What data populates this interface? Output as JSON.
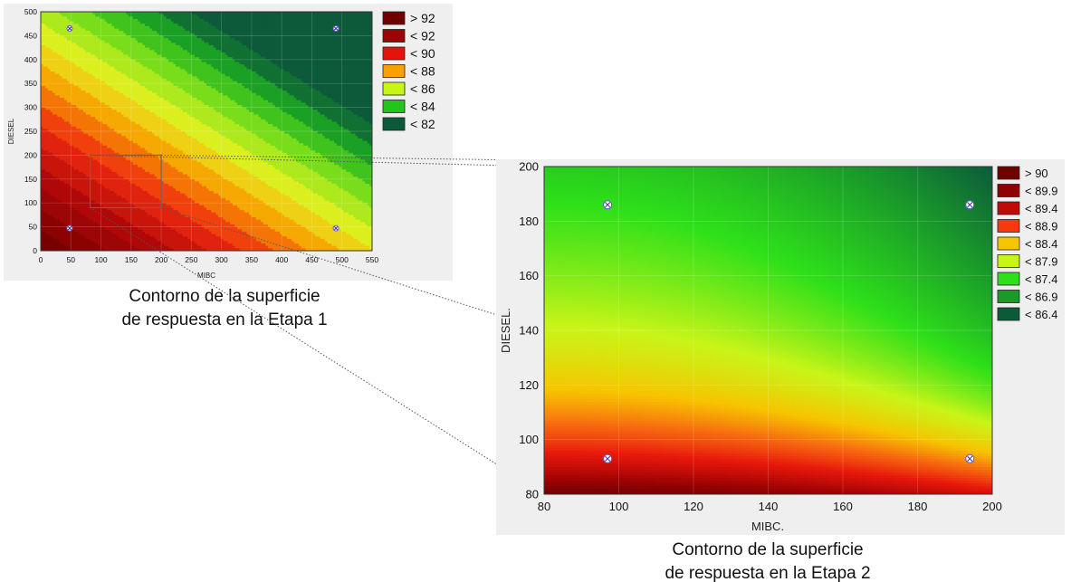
{
  "chart_data": [
    {
      "type": "heatmap",
      "subtype": "contour",
      "xlabel": "MIBC",
      "ylabel": "DIESEL",
      "xlim": [
        0,
        550
      ],
      "ylim": [
        0,
        500
      ],
      "xticks": [
        0,
        50,
        100,
        150,
        200,
        250,
        300,
        350,
        400,
        450,
        500,
        550
      ],
      "yticks": [
        0,
        50,
        100,
        150,
        200,
        250,
        300,
        350,
        400,
        450,
        500
      ],
      "legend_placement": "right",
      "legend": [
        {
          "label": "> 92",
          "color": "#6e0000"
        },
        {
          "label": "< 92",
          "color": "#9b0404"
        },
        {
          "label": "< 90",
          "color": "#e3140c"
        },
        {
          "label": "< 88",
          "color": "#f7a000"
        },
        {
          "label": "< 86",
          "color": "#c8f518"
        },
        {
          "label": "< 84",
          "color": "#22c61a"
        },
        {
          "label": "< 82",
          "color": "#0c5a3a"
        }
      ],
      "design_points": [
        {
          "x": 48,
          "y": 47
        },
        {
          "x": 48,
          "y": 465
        },
        {
          "x": 490,
          "y": 47
        },
        {
          "x": 490,
          "y": 465
        }
      ],
      "zoom_region": {
        "x": [
          82,
          200
        ],
        "y": [
          90,
          200
        ]
      },
      "caption": [
        "Contorno de la superficie",
        "de respuesta en la Etapa 1"
      ]
    },
    {
      "type": "heatmap",
      "subtype": "contour",
      "xlabel": "MIBC.",
      "ylabel": "DIESEL.",
      "xlim": [
        80,
        200
      ],
      "ylim": [
        80,
        200
      ],
      "xticks": [
        80,
        100,
        120,
        140,
        160,
        180,
        200
      ],
      "yticks": [
        80,
        100,
        120,
        140,
        160,
        180,
        200
      ],
      "legend_placement": "right",
      "legend": [
        {
          "label": "> 90",
          "color": "#6e0000"
        },
        {
          "label": "< 89.9",
          "color": "#8e0202"
        },
        {
          "label": "< 89.4",
          "color": "#c00a08"
        },
        {
          "label": "< 88.9",
          "color": "#f53a10"
        },
        {
          "label": "< 88.4",
          "color": "#f7c400"
        },
        {
          "label": "< 87.9",
          "color": "#c8f518"
        },
        {
          "label": "< 87.4",
          "color": "#2ee019"
        },
        {
          "label": "< 86.9",
          "color": "#1a9a2a"
        },
        {
          "label": "< 86.4",
          "color": "#0c5a3a"
        }
      ],
      "design_points": [
        {
          "x": 97,
          "y": 186
        },
        {
          "x": 194,
          "y": 186
        },
        {
          "x": 97,
          "y": 93
        },
        {
          "x": 194,
          "y": 93
        }
      ],
      "caption": [
        "Contorno de la superficie",
        "de respuesta en la Etapa 2"
      ]
    }
  ]
}
